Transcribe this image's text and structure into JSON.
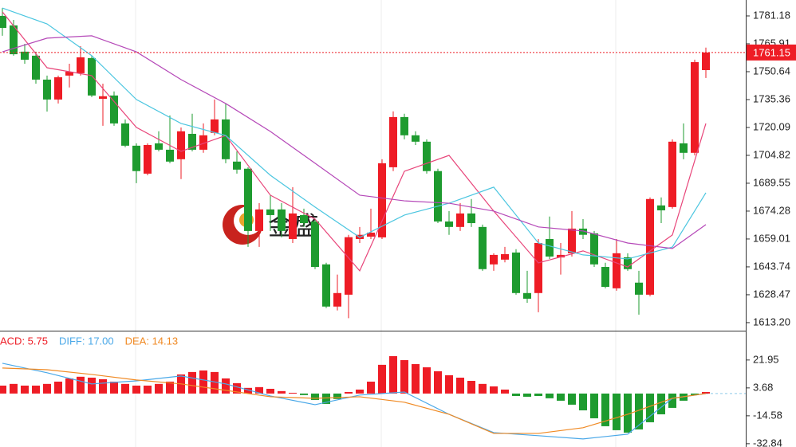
{
  "watermark": "金盛",
  "chart_data": [
    {
      "type": "candlestick",
      "up_color": "#ee1c25",
      "down_color": "#1e9b2f",
      "open": [
        1781.2,
        1776.0,
        1761.6,
        1759.4,
        1746.3,
        1735.4,
        1748.5,
        1749.8,
        1758.1,
        1735.8,
        1737.6,
        1722.3,
        1710.1,
        1694.8,
        1711.4,
        1707.9,
        1702.7,
        1716.6,
        1707.9,
        1717.1,
        1724.5,
        1701.4,
        1697.5,
        1663.4,
        1675.2,
        1675.2,
        1659.0,
        1672.1,
        1668.6,
        1645.1,
        1622.0,
        1628.5,
        1659.0,
        1660.3,
        1659.9,
        1698.3,
        1725.8,
        1715.8,
        1712.3,
        1696.2,
        1668.6,
        1665.6,
        1673.0,
        1665.6,
        1645.1,
        1647.7,
        1651.6,
        1629.4,
        1629.4,
        1659.0,
        1648.9,
        1651.2,
        1664.7,
        1662.1,
        1643.7,
        1632.0,
        1649.0,
        1635.1,
        1628.5,
        1677.4,
        1676.5,
        1711.4,
        1706.2,
        1751.5
      ],
      "close": [
        1774.6,
        1760.2,
        1757.2,
        1746.3,
        1735.4,
        1747.6,
        1750.6,
        1758.5,
        1737.6,
        1737.2,
        1722.3,
        1710.1,
        1696.2,
        1710.5,
        1707.9,
        1701.4,
        1718.0,
        1707.9,
        1715.8,
        1724.5,
        1702.7,
        1697.0,
        1663.4,
        1675.2,
        1672.1,
        1663.4,
        1673.0,
        1667.7,
        1643.7,
        1622.0,
        1629.4,
        1660.0,
        1661.3,
        1662.5,
        1700.5,
        1725.8,
        1715.8,
        1712.3,
        1696.2,
        1668.6,
        1665.6,
        1673.0,
        1667.7,
        1642.5,
        1650.3,
        1650.7,
        1629.4,
        1626.3,
        1656.8,
        1649.4,
        1650.3,
        1664.7,
        1661.3,
        1645.1,
        1632.8,
        1651.2,
        1642.5,
        1628.5,
        1680.9,
        1674.7,
        1712.3,
        1706.2,
        1755.9,
        1761.15
      ],
      "high": [
        1785.5,
        1779.0,
        1765.9,
        1761.6,
        1748.5,
        1748.5,
        1755.0,
        1764.6,
        1759.4,
        1744.1,
        1739.8,
        1724.5,
        1711.4,
        1711.4,
        1718.0,
        1726.7,
        1720.1,
        1727.6,
        1722.3,
        1735.4,
        1733.2,
        1707.0,
        1698.3,
        1678.7,
        1683.1,
        1678.7,
        1687.4,
        1675.6,
        1670.0,
        1646.0,
        1639.5,
        1661.3,
        1665.6,
        1675.6,
        1702.7,
        1728.9,
        1727.6,
        1718.0,
        1713.6,
        1697.5,
        1674.3,
        1678.7,
        1680.9,
        1666.9,
        1651.2,
        1654.7,
        1653.4,
        1641.6,
        1659.0,
        1671.3,
        1656.8,
        1674.3,
        1669.9,
        1663.4,
        1646.0,
        1659.0,
        1651.2,
        1641.6,
        1681.8,
        1681.8,
        1713.6,
        1722.3,
        1757.2,
        1763.8
      ],
      "low": [
        1770.3,
        1759.4,
        1755.0,
        1744.1,
        1728.8,
        1733.2,
        1742.0,
        1748.5,
        1736.7,
        1721.0,
        1721.0,
        1709.3,
        1689.6,
        1693.9,
        1707.0,
        1700.5,
        1691.8,
        1707.0,
        1706.2,
        1715.8,
        1700.5,
        1694.8,
        1654.7,
        1654.7,
        1663.4,
        1659.9,
        1656.8,
        1665.6,
        1642.5,
        1621.2,
        1619.9,
        1615.6,
        1656.8,
        1659.0,
        1659.0,
        1696.2,
        1713.6,
        1710.5,
        1694.8,
        1667.7,
        1661.3,
        1663.4,
        1665.6,
        1641.6,
        1641.6,
        1646.2,
        1628.5,
        1624.1,
        1618.9,
        1648.1,
        1639.5,
        1649.4,
        1659.0,
        1643.7,
        1632.0,
        1630.7,
        1641.6,
        1617.6,
        1627.6,
        1667.7,
        1675.6,
        1702.7,
        1704.8,
        1747.2
      ],
      "series": [
        {
          "color": "#e8457a",
          "x": [
            0,
            4,
            8,
            12,
            16,
            20,
            24,
            28,
            32,
            36,
            40,
            44,
            48,
            52,
            56,
            60,
            63
          ],
          "values": [
            1783.4,
            1752.8,
            1748.5,
            1720.1,
            1707.0,
            1715.7,
            1683.0,
            1669.9,
            1641.6,
            1696.1,
            1704.8,
            1674.3,
            1645.9,
            1652.5,
            1643.7,
            1661.2,
            1722.3
          ]
        },
        {
          "color": "#4cc6e0",
          "x": [
            0,
            4,
            8,
            12,
            16,
            20,
            24,
            28,
            32,
            36,
            40,
            44,
            48,
            52,
            56,
            60,
            63
          ],
          "values": [
            1785.5,
            1776.8,
            1759.4,
            1735.4,
            1722.3,
            1715.7,
            1693.9,
            1676.5,
            1659.9,
            1672.1,
            1678.6,
            1687.4,
            1656.8,
            1650.3,
            1648.1,
            1654.6,
            1684.3
          ]
        },
        {
          "color": "#b548b8",
          "x": [
            0,
            4,
            8,
            12,
            16,
            20,
            24,
            28,
            32,
            36,
            40,
            44,
            48,
            52,
            56,
            60,
            63
          ],
          "values": [
            1761.5,
            1769.0,
            1770.3,
            1761.5,
            1746.3,
            1733.2,
            1717.9,
            1700.5,
            1683.0,
            1679.9,
            1678.6,
            1674.3,
            1665.6,
            1663.4,
            1656.8,
            1653.8,
            1666.9
          ]
        }
      ],
      "last_price": 1761.15,
      "ylim": [
        1608.8,
        1789.9
      ],
      "yticks": [
        1781.18,
        1765.91,
        1750.64,
        1735.36,
        1720.09,
        1704.82,
        1689.55,
        1674.28,
        1659.01,
        1643.74,
        1628.47,
        {
          "value": 1613.2,
          "label": "1613.20"
        }
      ]
    },
    {
      "type": "macd",
      "up_color": "#ee1c25",
      "down_color": "#1e9b2f",
      "values": [
        5.2,
        6.3,
        5.2,
        5.2,
        6.3,
        7.8,
        9.9,
        11.0,
        10.4,
        9.4,
        7.8,
        6.3,
        5.2,
        5.2,
        6.3,
        7.8,
        12.5,
        14.1,
        15.1,
        14.1,
        9.9,
        6.8,
        3.7,
        4.2,
        3.1,
        1.6,
        0.5,
        -1.0,
        -4.2,
        -6.8,
        -3.6,
        1.0,
        2.6,
        7.8,
        18.8,
        24.5,
        21.9,
        19.3,
        17.2,
        14.6,
        12.0,
        10.4,
        8.3,
        6.3,
        4.7,
        2.6,
        -1.6,
        -2.1,
        -1.6,
        -3.1,
        -4.7,
        -7.3,
        -11.0,
        -16.2,
        -21.4,
        -24.0,
        -25.6,
        -23.5,
        -18.8,
        -13.6,
        -9.4,
        -4.7,
        -1.0,
        1.0
      ],
      "series": [
        {
          "color": "#4aa8e8",
          "x": [
            0,
            4,
            8,
            12,
            16,
            20,
            24,
            28,
            32,
            36,
            40,
            44,
            48,
            52,
            56,
            60,
            63
          ],
          "values": [
            19.8,
            13.6,
            6.3,
            8.3,
            11.5,
            6.3,
            -1.6,
            -7.3,
            -1.0,
            1.0,
            -13.6,
            -25.6,
            -27.6,
            -29.7,
            -26.6,
            -3.1,
            0
          ]
        },
        {
          "color": "#f08a24",
          "x": [
            0,
            4,
            8,
            12,
            16,
            20,
            24,
            28,
            32,
            36,
            40,
            44,
            48,
            52,
            56,
            60,
            63
          ],
          "values": [
            16.7,
            15.6,
            12.5,
            8.9,
            6.3,
            2.1,
            -2.1,
            -3.1,
            -2.1,
            -5.7,
            -13.6,
            -26.1,
            -26.1,
            -22.4,
            -13.6,
            -3.1,
            0
          ]
        }
      ],
      "legend": [
        "ACD: 5.75",
        "DIFF: 17.00",
        "DEA: 14.13"
      ],
      "legend_colors": [
        "#ee1c25",
        "#4aa8e8",
        "#f08a24"
      ],
      "ylim": [
        -35.0,
        39.6
      ],
      "yticks": [
        21.95,
        3.68,
        -14.58,
        -32.84
      ]
    }
  ]
}
